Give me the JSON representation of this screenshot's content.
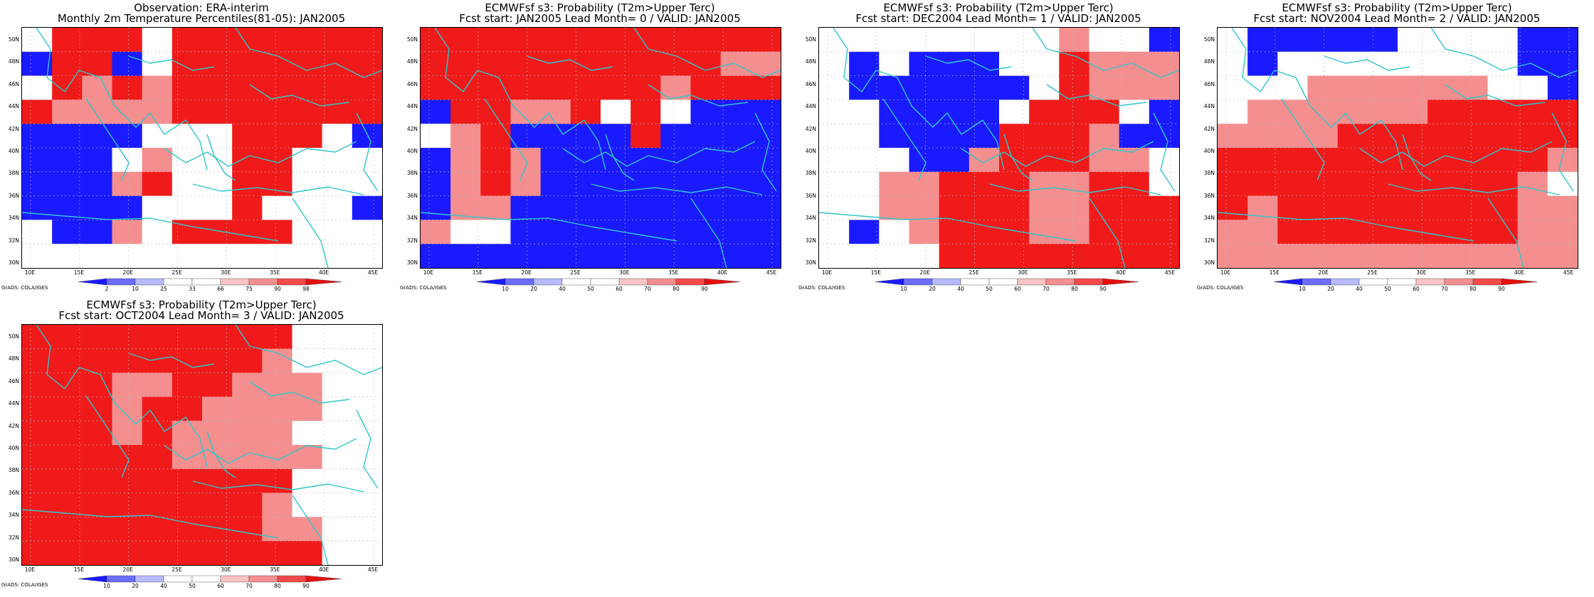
{
  "panels": [
    {
      "title1": "Observation: ERA-interim",
      "title2": "Monthly 2m Temperature Percentiles(81-05): JAN2005",
      "colorbar_ticks": [
        "2",
        "10",
        "25",
        "33",
        "66",
        "75",
        "90",
        "98"
      ],
      "rows": [
        "WRRRWRRRRRRR",
        "BRRBWRRRRRRR",
        "WRLRLRRRRRRR",
        "RLLLLRRRRRRR",
        "BBBBWWWRRRWB",
        "BBBWLWWRRWWW",
        "BBBLRWWRRWWW",
        "BBBBWWWRWWWB",
        "WBBLWRRRRWWW",
        "WWWWWWWWWWWW"
      ]
    },
    {
      "title1": "ECMWFsf s3: Probability (T2m>Upper Terc)",
      "title2": "Fcst start: JAN2005   Lead Month= 0 / VALID: JAN2005",
      "colorbar_ticks": [
        "10",
        "20",
        "40",
        "50",
        "60",
        "70",
        "80",
        "90"
      ],
      "rows": [
        "RRRRRRRRRRRR",
        "RRRRRRRRRRLL",
        "RRRRRRRRLRRR",
        "BRRLLRWRWBBB",
        "WLRBBBBRBBBB",
        "BLRLBBBBBBBB",
        "BLRLBBBBBBBB",
        "BLLBBBBBBBBB",
        "LWWBBBBBBBBB",
        "BBBBBBBBBBBB"
      ]
    },
    {
      "title1": "ECMWFsf s3: Probability (T2m>Upper Terc)",
      "title2": "Fcst start: DEC2004   Lead Month= 1 / VALID: JAN2005",
      "colorbar_ticks": [
        "10",
        "20",
        "40",
        "50",
        "60",
        "70",
        "80",
        "90"
      ],
      "rows": [
        "WWWWWWWWLWWB",
        "WBWBBBWWRLLL",
        "WBBBBBBWRLLL",
        "WWBBBBWRRRWB",
        "WWBBBBRRRLBB",
        "WWWBBLRRRLLW",
        "WWLLRRRLLRRW",
        "WWLLRRRLLRRR",
        "WBWLRRRLLRRR",
        "WWWWRRRRRRRR"
      ]
    },
    {
      "title1": "ECMWFsf s3: Probability (T2m>Upper Terc)",
      "title2": "Fcst start: NOV2004   Lead Month= 2 / VALID: JAN2005",
      "colorbar_ticks": [
        "10",
        "20",
        "40",
        "50",
        "60",
        "70",
        "80",
        "90"
      ],
      "rows": [
        "WBBBBBWWWWBB",
        "WBWWWWWWWWBB",
        "WWWLLLLLLWWB",
        "WLLLLLLRRRRR",
        "LLLLRRRRRRRR",
        "RRRRRRRRRRRL",
        "RRRRRRRRRRLW",
        "RLRRRRRRRRLL",
        "LLRRRRRRRRLL",
        "LLLLLLLLLLLL"
      ]
    },
    {
      "title1": "ECMWFsf s3: Probability (T2m>Upper Terc)",
      "title2": "Fcst start: OCT2004   Lead Month= 3 / VALID: JAN2005",
      "colorbar_ticks": [
        "10",
        "20",
        "40",
        "50",
        "60",
        "70",
        "80",
        "90"
      ],
      "rows": [
        "RRRRRRRRRWWW",
        "RRRRRRRRLWWW",
        "RRRLLRRLLLWW",
        "RRRLRRLLLLWW",
        "RRRLRLLLLWWW",
        "RRRRRLLLLLWW",
        "RRRRRRRRRWWW",
        "RRRRRRRRLWWW",
        "RRRRRRRRLLWW",
        "RRRRRRRRRRWW"
      ]
    }
  ],
  "legend": {
    "lat_labels": [
      "50N",
      "48N",
      "46N",
      "44N",
      "42N",
      "40N",
      "38N",
      "36N",
      "34N",
      "32N",
      "30N"
    ],
    "lon_labels": [
      "10E",
      "15E",
      "20E",
      "25E",
      "30E",
      "35E",
      "40E",
      "45E"
    ],
    "credit": "GrADS: COLA/IGES"
  },
  "colors": {
    "red": "#f01a1a",
    "light_red": "#f58f8f",
    "blue": "#1a1aff",
    "light_blue": "#9f9ff7",
    "white": "#ffffff",
    "coast": "#2fc6c9",
    "grid": "#b8b8b8"
  }
}
